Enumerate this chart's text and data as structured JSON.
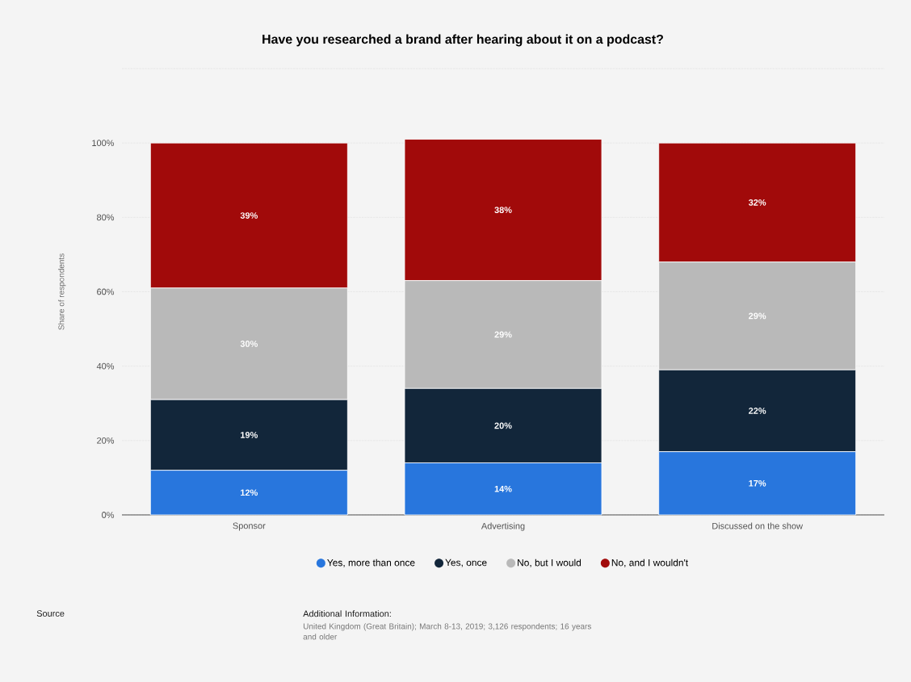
{
  "chart_data": {
    "type": "bar",
    "stacked": true,
    "title": "Have you researched a brand after hearing about it on a podcast?",
    "ylabel": "Share of respondents",
    "categories": [
      "Sponsor",
      "Advertising",
      "Discussed on the show"
    ],
    "series": [
      {
        "name": "Yes, more than once",
        "color": "#2876dd",
        "values": [
          12,
          14,
          17
        ],
        "value_labels": [
          "12%",
          "14%",
          "17%"
        ]
      },
      {
        "name": "Yes, once",
        "color": "#12263a",
        "values": [
          19,
          20,
          22
        ],
        "value_labels": [
          "19%",
          "20%",
          "22%"
        ]
      },
      {
        "name": "No, but I would",
        "color": "#b9b9b9",
        "values": [
          30,
          29,
          29
        ],
        "value_labels": [
          "30%",
          "29%",
          "29%"
        ]
      },
      {
        "name": "No, and I wouldn't",
        "color": "#a10a0a",
        "values": [
          39,
          38,
          32
        ],
        "value_labels": [
          "39%",
          "38%",
          "32%"
        ]
      }
    ],
    "ylim": [
      0,
      120
    ],
    "yticks": [
      {
        "value": 0,
        "label": "0%"
      },
      {
        "value": 20,
        "label": "20%"
      },
      {
        "value": 40,
        "label": "40%"
      },
      {
        "value": 60,
        "label": "60%"
      },
      {
        "value": 80,
        "label": "80%"
      },
      {
        "value": 100,
        "label": "100%"
      },
      {
        "value": 120,
        "label": null
      }
    ],
    "grid": "y",
    "legend": "bottom",
    "annotations": [
      "Source",
      "Additional Information:",
      "United Kingdom (Great Britain); March 8-13, 2019; 3,126 respondents; 16 years and older"
    ]
  }
}
